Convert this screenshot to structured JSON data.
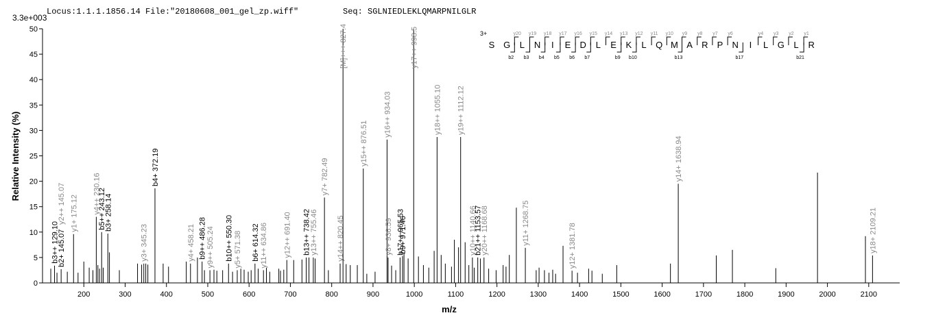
{
  "chart_data": {
    "type": "spectrum",
    "header": "Locus:1.1.1.1856.14 File:\"20180608_001_gel_zp.wiff\"",
    "sequence_title": "Seq: SGLNIEDLEKLQMARPNILGLR",
    "scale_note": "3.3e+003",
    "xlabel": "m/z",
    "ylabel": "Relative   Intensity (%)",
    "xlim": [
      100,
      2175
    ],
    "ylim": [
      0,
      50
    ],
    "xticks": [
      200,
      300,
      400,
      500,
      600,
      700,
      800,
      900,
      1000,
      1100,
      1200,
      1300,
      1400,
      1500,
      1600,
      1700,
      1800,
      1900,
      2000,
      2100
    ],
    "yticks": [
      0,
      5,
      10,
      15,
      20,
      25,
      30,
      35,
      40,
      45,
      50
    ],
    "color": "#000000",
    "peaks": {
      "mz": [
        120,
        135,
        160,
        186,
        200,
        213,
        222,
        234,
        238,
        247,
        262,
        286,
        330,
        340,
        350,
        355,
        392,
        405,
        448,
        475,
        492,
        515,
        522,
        536,
        560,
        580,
        588,
        598,
        605,
        622,
        642,
        650,
        672,
        676,
        684,
        708,
        728,
        745,
        760,
        792,
        835,
        845,
        862,
        885,
        905,
        945,
        955,
        975,
        985,
        1010,
        1022,
        1035,
        1048,
        1065,
        1075,
        1090,
        1097,
        1107,
        1123,
        1132,
        1145,
        1160,
        1180,
        1198,
        1215,
        1222,
        1230,
        1247,
        1295,
        1302,
        1315,
        1326,
        1335,
        1342,
        1360,
        1395,
        1422,
        1430,
        1455,
        1490,
        1620,
        1731,
        1770,
        1875,
        1976,
        2092
      ],
      "intensity": [
        2.8,
        2.0,
        2.2,
        2.0,
        4.2,
        3.0,
        2.5,
        3.5,
        2.8,
        3.0,
        6.0,
        2.5,
        3.8,
        3.6,
        3.8,
        3.6,
        3.8,
        3.2,
        4.2,
        5.0,
        2.5,
        2.6,
        2.4,
        2.5,
        2.2,
        2.8,
        2.6,
        2.2,
        2.5,
        2.8,
        3.0,
        2.2,
        2.8,
        2.4,
        2.6,
        4.5,
        4.6,
        5.0,
        4.8,
        2.5,
        3.7,
        3.5,
        3.5,
        1.8,
        2.2,
        3.4,
        2.5,
        5.8,
        4.8,
        5.2,
        3.5,
        3.0,
        6.3,
        5.5,
        3.8,
        3.2,
        8.5,
        7.0,
        8.0,
        3.5,
        3.0,
        4.8,
        2.8,
        2.5,
        3.5,
        3.2,
        5.5,
        14.8,
        2.5,
        3.0,
        2.5,
        2.0,
        2.6,
        1.8,
        7.3,
        2.0,
        2.8,
        2.4,
        1.8,
        3.5,
        3.8,
        5.4,
        6.5,
        2.9,
        21.7,
        9.2
      ]
    },
    "labeled_peaks": [
      {
        "mz": 129.1,
        "intensity": 3.4,
        "labels": [
          {
            "text": "b3++ 129.10",
            "color": "#000000"
          }
        ]
      },
      {
        "mz": 145.07,
        "intensity": 2.7,
        "labels": [
          {
            "text": "b2+ 145.07",
            "color": "#000000"
          },
          {
            "text": "y2++ 145.07",
            "color": "#888888"
          }
        ]
      },
      {
        "mz": 175.12,
        "intensity": 9.6,
        "labels": [
          {
            "text": "y1+ 175.12",
            "color": "#888888"
          }
        ]
      },
      {
        "mz": 230.16,
        "intensity": 13,
        "labels": [
          {
            "text": "y4++ 230.16",
            "color": "#888888"
          }
        ]
      },
      {
        "mz": 243.12,
        "intensity": 10,
        "labels": [
          {
            "text": "b5++ 243.12",
            "color": "#000000"
          }
        ]
      },
      {
        "mz": 258.14,
        "intensity": 9.7,
        "labels": [
          {
            "text": "b3+ 258.14",
            "color": "#000000"
          }
        ]
      },
      {
        "mz": 345.23,
        "intensity": 3.8,
        "labels": [
          {
            "text": "y3+ 345.23",
            "color": "#888888"
          }
        ]
      },
      {
        "mz": 372.19,
        "intensity": 18.6,
        "labels": [
          {
            "text": "b4+ 372.19",
            "color": "#000000"
          }
        ]
      },
      {
        "mz": 458.21,
        "intensity": 3.8,
        "labels": [
          {
            "text": "y4+ 458.21",
            "color": "#888888"
          }
        ]
      },
      {
        "mz": 486.28,
        "intensity": 4.2,
        "labels": [
          {
            "text": "b9++ 486.28",
            "color": "#000000"
          }
        ]
      },
      {
        "mz": 505.24,
        "intensity": 2.5,
        "labels": [
          {
            "text": "y9++ 505.24",
            "color": "#888888"
          }
        ]
      },
      {
        "mz": 550.3,
        "intensity": 3.8,
        "labels": [
          {
            "text": "b10++ 550.30",
            "color": "#000000"
          }
        ]
      },
      {
        "mz": 571.38,
        "intensity": 2.5,
        "labels": [
          {
            "text": "y5+ 571.38",
            "color": "#888888"
          }
        ]
      },
      {
        "mz": 614.32,
        "intensity": 3.8,
        "labels": [
          {
            "text": "b6+ 614.32",
            "color": "#000000"
          }
        ]
      },
      {
        "mz": 634.86,
        "intensity": 2.5,
        "labels": [
          {
            "text": "y11++ 634.86",
            "color": "#888888"
          }
        ]
      },
      {
        "mz": 691.4,
        "intensity": 4.5,
        "labels": [
          {
            "text": "y12++ 691.40",
            "color": "#888888"
          }
        ]
      },
      {
        "mz": 738.42,
        "intensity": 5,
        "labels": [
          {
            "text": "b13++ 738.42",
            "color": "#000000"
          }
        ]
      },
      {
        "mz": 755.46,
        "intensity": 5,
        "labels": [
          {
            "text": "y13++ 755.46",
            "color": "#888888"
          }
        ]
      },
      {
        "mz": 782.49,
        "intensity": 16.8,
        "labels": [
          {
            "text": "y7+ 782.49",
            "color": "#888888"
          }
        ]
      },
      {
        "mz": 820.45,
        "intensity": 3.8,
        "labels": [
          {
            "text": "y14++ 820.45",
            "color": "#888888"
          }
        ]
      },
      {
        "mz": 827.4,
        "intensity": 50,
        "labels": [
          {
            "text": "[M]+++ 827.4",
            "color": "#888888"
          }
        ]
      },
      {
        "mz": 876.51,
        "intensity": 22.5,
        "labels": [
          {
            "text": "y15++ 876.51",
            "color": "#888888"
          }
        ]
      },
      {
        "mz": 934.03,
        "intensity": 28.2,
        "labels": [
          {
            "text": "y16++ 934.03",
            "color": "#888888"
          }
        ]
      },
      {
        "mz": 936.59,
        "intensity": 5,
        "labels": [
          {
            "text": "y8+ 936.59",
            "color": "#888888"
          }
        ]
      },
      {
        "mz": 965.53,
        "intensity": 5,
        "labels": [
          {
            "text": "b17++ 965.53",
            "color": "#000000"
          }
        ]
      },
      {
        "mz": 971.46,
        "intensity": 5.3,
        "labels": [
          {
            "text": "b9+ 971.46",
            "color": "#000000"
          }
        ]
      },
      {
        "mz": 998.5,
        "intensity": 50,
        "labels": [
          {
            "text": "y17++ 998.5",
            "color": "#888888"
          }
        ]
      },
      {
        "mz": 1055.1,
        "intensity": 28.7,
        "labels": [
          {
            "text": "y18++ 1055.10",
            "color": "#888888"
          }
        ]
      },
      {
        "mz": 1112.12,
        "intensity": 28.7,
        "labels": [
          {
            "text": "y19++ 1112.12",
            "color": "#888888"
          }
        ]
      },
      {
        "mz": 1140.66,
        "intensity": 5,
        "labels": [
          {
            "text": "y10++ 1140.66",
            "color": "#888888"
          }
        ]
      },
      {
        "mz": 1153.57,
        "intensity": 5,
        "labels": [
          {
            "text": "b21++ 1153.57",
            "color": "#000000"
          }
        ]
      },
      {
        "mz": 1168.68,
        "intensity": 5,
        "labels": [
          {
            "text": "y20++ 1168.68",
            "color": "#888888"
          }
        ]
      },
      {
        "mz": 1268.75,
        "intensity": 6.9,
        "labels": [
          {
            "text": "y11+ 1268.75",
            "color": "#888888"
          }
        ]
      },
      {
        "mz": 1381.78,
        "intensity": 2.4,
        "labels": [
          {
            "text": "y12+ 1381.78",
            "color": "#888888"
          }
        ]
      },
      {
        "mz": 1638.94,
        "intensity": 19.5,
        "labels": [
          {
            "text": "y14+ 1638.94",
            "color": "#888888"
          }
        ]
      },
      {
        "mz": 2109.21,
        "intensity": 5.4,
        "labels": [
          {
            "text": "y18+ 2109.21",
            "color": "#888888"
          }
        ]
      }
    ],
    "sequence": {
      "charge": "3+",
      "residues": [
        "S",
        "G",
        "L",
        "N",
        "I",
        "E",
        "D",
        "L",
        "E",
        "K",
        "L",
        "Q",
        "M",
        "A",
        "R",
        "P",
        "N",
        "I",
        "L",
        "G",
        "L",
        "R"
      ],
      "y_ions": [
        {
          "n": 20,
          "label": "y20"
        },
        {
          "n": 19,
          "label": "y19"
        },
        {
          "n": 18,
          "label": "y18"
        },
        {
          "n": 17,
          "label": "y17"
        },
        {
          "n": 16,
          "label": "y16"
        },
        {
          "n": 15,
          "label": "y15"
        },
        {
          "n": 14,
          "label": "y14"
        },
        {
          "n": 13,
          "label": "y13"
        },
        {
          "n": 12,
          "label": "y12"
        },
        {
          "n": 11,
          "label": "y11"
        },
        {
          "n": 10,
          "label": "y10"
        },
        {
          "n": 9,
          "label": "y9"
        },
        {
          "n": 8,
          "label": "y8"
        },
        {
          "n": 7,
          "label": "y7"
        },
        {
          "n": 6,
          "label": "y6"
        },
        {
          "n": 4,
          "label": "y4"
        },
        {
          "n": 3,
          "label": "y3"
        },
        {
          "n": 2,
          "label": "y2"
        },
        {
          "n": 1,
          "label": "y1"
        }
      ],
      "b_ions": [
        {
          "n": 2,
          "label": "b2"
        },
        {
          "n": 3,
          "label": "b3"
        },
        {
          "n": 4,
          "label": "b4"
        },
        {
          "n": 5,
          "label": "b5"
        },
        {
          "n": 6,
          "label": "b6"
        },
        {
          "n": 7,
          "label": "b7"
        },
        {
          "n": 9,
          "label": "b9"
        },
        {
          "n": 10,
          "label": "b10"
        },
        {
          "n": 13,
          "label": "b13"
        },
        {
          "n": 17,
          "label": "b17"
        },
        {
          "n": 21,
          "label": "b21"
        }
      ]
    }
  }
}
